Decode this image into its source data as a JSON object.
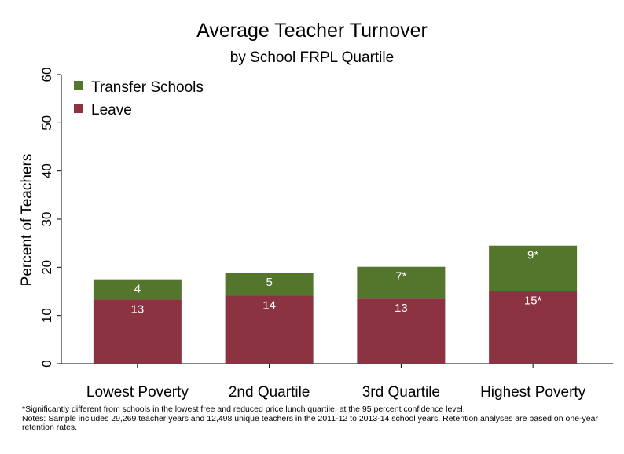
{
  "chart_data": {
    "type": "bar",
    "stacked": true,
    "title": "Average Teacher Turnover",
    "subtitle": "by School FRPL Quartile",
    "ylabel": "Percent of Teachers",
    "xlabel": "",
    "ylim": [
      0,
      60
    ],
    "yticks": [
      "0",
      "10",
      "20",
      "30",
      "40",
      "50",
      "60"
    ],
    "grid": false,
    "legend_position": "top-left",
    "categories": [
      "Lowest Poverty",
      "2nd Quartile",
      "3rd Quartile",
      "Highest Poverty"
    ],
    "series": [
      {
        "name": "Leave",
        "color": "#8b3340",
        "values": [
          13.3,
          14.1,
          13.5,
          15.1
        ],
        "labels": [
          "13",
          "14",
          "13",
          "15*"
        ]
      },
      {
        "name": "Transfer Schools",
        "color": "#53752c",
        "values": [
          4.2,
          4.8,
          6.6,
          9.4
        ],
        "labels": [
          "4",
          "5",
          "7*",
          "9*"
        ]
      }
    ]
  },
  "legend": [
    {
      "label": "Transfer Schools",
      "color": "#53752c"
    },
    {
      "label": "Leave",
      "color": "#8b3340"
    }
  ],
  "notes": {
    "line1": "*Significantly different from schools in the lowest free and reduced  price lunch quartile, at the 95 percent confidence level.",
    "line2": "Notes: Sample includes 29,269 teacher years and 12,498 unique teachers in the 2011-12 to 2013-14 school years. Retention analyses are based on one-year retention rates."
  }
}
